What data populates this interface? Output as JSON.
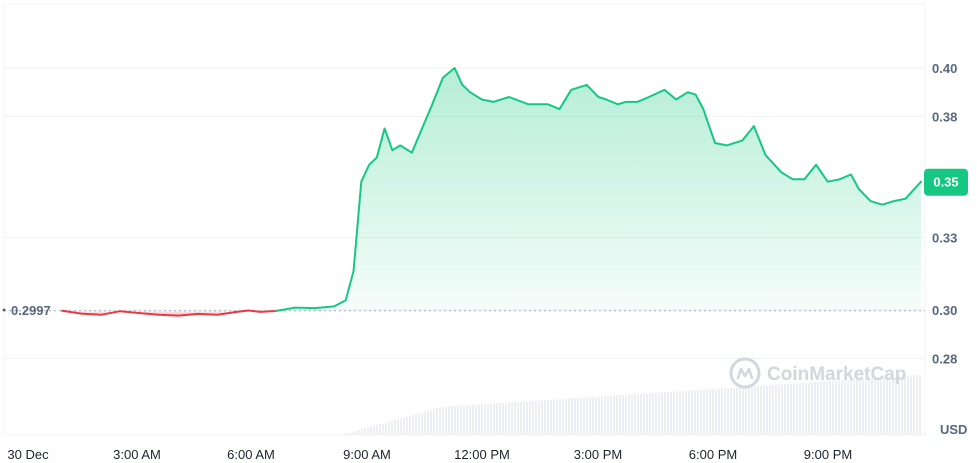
{
  "chart_data": {
    "type": "area",
    "currency": "USD",
    "y_ticks": [
      "0.40",
      "0.38",
      "0.35",
      "0.33",
      "0.30",
      "0.28"
    ],
    "y_tick_values": [
      0.4,
      0.38,
      0.355,
      0.33,
      0.3,
      0.28
    ],
    "ylim": [
      0.28,
      0.4
    ],
    "x_ticks": [
      "30 Dec",
      "3:00 AM",
      "6:00 AM",
      "9:00 AM",
      "12:00 PM",
      "3:00 PM",
      "6:00 PM",
      "9:00 PM"
    ],
    "xlim": [
      0.0,
      23.6
    ],
    "start_price": 0.2997,
    "start_label": "0.2997",
    "current_label": "0.35",
    "watermark": "CoinMarketCap",
    "colors": {
      "up": "#16c784",
      "down": "#ea3943",
      "axis_text": "#58667e",
      "grid": "#eff2f5",
      "baseline": "#a6b0c3"
    },
    "series": [
      {
        "x": [
          1.5,
          2.0,
          2.5,
          3.0,
          3.5,
          4.0,
          4.5,
          5.0,
          5.5,
          6.0,
          6.3,
          6.6,
          7.0
        ],
        "values": [
          0.2997,
          0.2985,
          0.298,
          0.2995,
          0.2987,
          0.298,
          0.2977,
          0.2984,
          0.298,
          0.2992,
          0.2998,
          0.2992,
          0.2996
        ]
      },
      {
        "x": [
          7.0,
          7.5,
          8.0,
          8.5,
          8.8,
          9.0,
          9.2,
          9.4,
          9.6,
          9.8,
          10.0,
          10.2,
          10.5,
          11.0,
          11.3,
          11.6,
          11.8,
          12.0,
          12.3,
          12.6,
          13.0,
          13.5,
          14.0,
          14.3,
          14.6,
          15.0,
          15.3,
          15.5,
          15.8,
          16.0,
          16.3,
          16.6,
          17.0,
          17.3,
          17.6,
          17.8,
          18.0,
          18.3,
          18.6,
          19.0,
          19.3,
          19.6,
          20.0,
          20.3,
          20.6,
          20.9,
          21.2,
          21.5,
          21.8,
          22.0,
          22.3,
          22.6,
          22.9,
          23.2,
          23.6
        ],
        "values": [
          0.2996,
          0.301,
          0.3008,
          0.3015,
          0.304,
          0.316,
          0.353,
          0.36,
          0.363,
          0.375,
          0.366,
          0.368,
          0.365,
          0.384,
          0.396,
          0.4,
          0.393,
          0.39,
          0.387,
          0.386,
          0.388,
          0.385,
          0.385,
          0.383,
          0.391,
          0.393,
          0.388,
          0.387,
          0.385,
          0.386,
          0.386,
          0.388,
          0.391,
          0.387,
          0.39,
          0.389,
          0.383,
          0.369,
          0.368,
          0.37,
          0.376,
          0.364,
          0.357,
          0.354,
          0.354,
          0.36,
          0.353,
          0.354,
          0.356,
          0.35,
          0.345,
          0.3435,
          0.345,
          0.346,
          0.353
        ]
      }
    ]
  }
}
